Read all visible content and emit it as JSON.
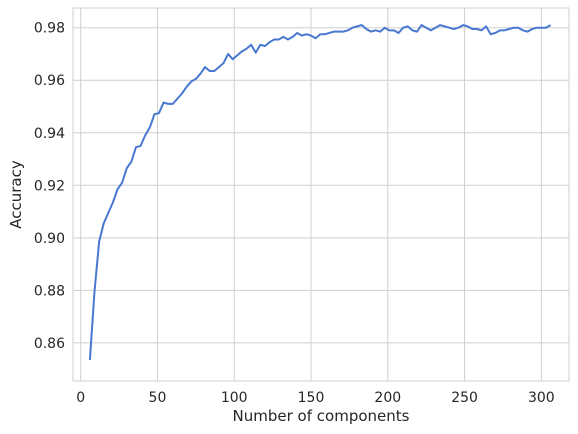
{
  "chart_data": {
    "type": "line",
    "xlabel": "Number of components",
    "ylabel": "Accuracy",
    "xlim": [
      -5,
      318
    ],
    "ylim": [
      0.8455,
      0.9875
    ],
    "xticks": [
      0,
      50,
      100,
      150,
      200,
      250,
      300
    ],
    "xtick_labels": [
      "0",
      "50",
      "100",
      "150",
      "200",
      "250",
      "300"
    ],
    "yticks": [
      0.86,
      0.88,
      0.9,
      0.92,
      0.94,
      0.96,
      0.98
    ],
    "ytick_labels": [
      "0.86",
      "0.88",
      "0.90",
      "0.92",
      "0.94",
      "0.96",
      "0.98"
    ],
    "grid": true,
    "line_color": "#4878cf",
    "series": [
      {
        "x": [
          6,
          9,
          12,
          15,
          18,
          21,
          24,
          27,
          30,
          33,
          36,
          39,
          42,
          45,
          48,
          51,
          54,
          57,
          60,
          63,
          66,
          69,
          72,
          75,
          78,
          81,
          84,
          87,
          90,
          93,
          96,
          99,
          102,
          105,
          108,
          111,
          114,
          117,
          120,
          123,
          126,
          129,
          132,
          135,
          138,
          141,
          144,
          147,
          150,
          153,
          156,
          159,
          162,
          165,
          168,
          171,
          174,
          177,
          180,
          183,
          186,
          189,
          192,
          195,
          198,
          201,
          204,
          207,
          210,
          213,
          216,
          219,
          222,
          225,
          228,
          231,
          234,
          237,
          240,
          243,
          246,
          249,
          252,
          255,
          258,
          261,
          264,
          267,
          270,
          273,
          276,
          279,
          282,
          285,
          288,
          291,
          294,
          297,
          300,
          303,
          306
        ],
        "values": [
          0.8535,
          0.8795,
          0.8985,
          0.9055,
          0.9095,
          0.9135,
          0.9185,
          0.921,
          0.9265,
          0.929,
          0.9345,
          0.935,
          0.939,
          0.942,
          0.947,
          0.9475,
          0.9515,
          0.951,
          0.951,
          0.953,
          0.955,
          0.9575,
          0.9595,
          0.9605,
          0.9625,
          0.965,
          0.9635,
          0.9635,
          0.965,
          0.9665,
          0.97,
          0.968,
          0.9695,
          0.971,
          0.972,
          0.9735,
          0.9705,
          0.9735,
          0.973,
          0.9745,
          0.9755,
          0.9755,
          0.9765,
          0.9755,
          0.9765,
          0.978,
          0.977,
          0.9775,
          0.977,
          0.976,
          0.9775,
          0.9775,
          0.978,
          0.9785,
          0.9785,
          0.9785,
          0.979,
          0.98,
          0.9805,
          0.981,
          0.9795,
          0.9785,
          0.979,
          0.9785,
          0.98,
          0.979,
          0.979,
          0.978,
          0.98,
          0.9805,
          0.979,
          0.9785,
          0.981,
          0.98,
          0.979,
          0.98,
          0.981,
          0.9805,
          0.98,
          0.9795,
          0.98,
          0.981,
          0.9805,
          0.9795,
          0.9795,
          0.979,
          0.9805,
          0.9775,
          0.978,
          0.979,
          0.979,
          0.9795,
          0.98,
          0.98,
          0.979,
          0.9785,
          0.9795,
          0.98,
          0.98,
          0.98,
          0.981
        ]
      }
    ]
  }
}
